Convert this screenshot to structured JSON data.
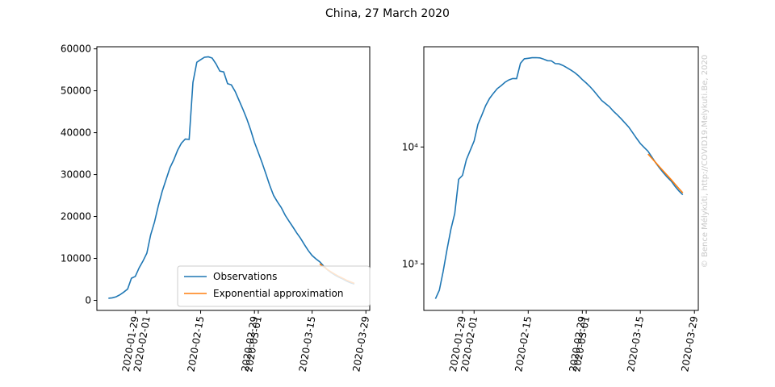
{
  "title": "China, 27 March 2020",
  "watermark": "© Bence Mélykúti, http://COVID19.Melykuti.Be, 2020",
  "chart_data": [
    {
      "type": "line",
      "log_y": false,
      "legend": "lower center",
      "x": [
        "2020-01-22",
        "2020-01-23",
        "2020-01-24",
        "2020-01-25",
        "2020-01-26",
        "2020-01-27",
        "2020-01-28",
        "2020-01-29",
        "2020-01-30",
        "2020-01-31",
        "2020-02-01",
        "2020-02-02",
        "2020-02-03",
        "2020-02-04",
        "2020-02-05",
        "2020-02-06",
        "2020-02-07",
        "2020-02-08",
        "2020-02-09",
        "2020-02-10",
        "2020-02-11",
        "2020-02-12",
        "2020-02-13",
        "2020-02-14",
        "2020-02-15",
        "2020-02-16",
        "2020-02-17",
        "2020-02-18",
        "2020-02-19",
        "2020-02-20",
        "2020-02-21",
        "2020-02-22",
        "2020-02-23",
        "2020-02-24",
        "2020-02-25",
        "2020-02-26",
        "2020-02-27",
        "2020-02-28",
        "2020-02-29",
        "2020-03-01",
        "2020-03-02",
        "2020-03-03",
        "2020-03-04",
        "2020-03-05",
        "2020-03-06",
        "2020-03-07",
        "2020-03-08",
        "2020-03-09",
        "2020-03-10",
        "2020-03-11",
        "2020-03-12",
        "2020-03-13",
        "2020-03-14",
        "2020-03-15",
        "2020-03-16",
        "2020-03-17",
        "2020-03-18",
        "2020-03-19",
        "2020-03-20",
        "2020-03-21",
        "2020-03-22",
        "2020-03-23",
        "2020-03-24",
        "2020-03-25",
        "2020-03-26"
      ],
      "series": [
        {
          "name": "Observations",
          "color": "#1f77b4",
          "values": [
            503,
            595,
            858,
            1325,
            1970,
            2700,
            5280,
            5720,
            7780,
            9370,
            11250,
            15600,
            18700,
            22600,
            26000,
            28800,
            31600,
            33500,
            35800,
            37500,
            38500,
            38400,
            52000,
            56800,
            57400,
            58000,
            58100,
            57800,
            56400,
            54700,
            54500,
            51700,
            51400,
            49800,
            47700,
            45600,
            43300,
            40700,
            37700,
            35300,
            32800,
            30100,
            27400,
            25000,
            23500,
            22100,
            20300,
            18900,
            17500,
            16100,
            14800,
            13300,
            11900,
            10700,
            9900,
            9200,
            8200,
            7300,
            6600,
            6000,
            5500,
            5100,
            4600,
            4200,
            3900
          ]
        },
        {
          "name": "Exponential approximation",
          "color": "#ff7f0e",
          "values": [
            null,
            null,
            null,
            null,
            null,
            null,
            null,
            null,
            null,
            null,
            null,
            null,
            null,
            null,
            null,
            null,
            null,
            null,
            null,
            null,
            null,
            null,
            null,
            null,
            null,
            null,
            null,
            null,
            null,
            null,
            null,
            null,
            null,
            null,
            null,
            null,
            null,
            null,
            null,
            null,
            null,
            null,
            null,
            null,
            null,
            null,
            null,
            null,
            null,
            null,
            null,
            null,
            null,
            null,
            null,
            8700,
            8000,
            7350,
            6750,
            6200,
            5700,
            5250,
            4800,
            4400,
            4050
          ]
        }
      ],
      "xlim": [
        "2020-01-19",
        "2020-03-30"
      ],
      "xticks": [
        "2020-01-29",
        "2020-02-01",
        "2020-02-15",
        "2020-02-29",
        "2020-03-01",
        "2020-03-15",
        "2020-03-29"
      ],
      "ylim": [
        -2400,
        60500
      ],
      "yticks": [
        0,
        10000,
        20000,
        30000,
        40000,
        50000,
        60000
      ]
    },
    {
      "type": "line",
      "log_y": true,
      "x": [
        "2020-01-22",
        "2020-01-23",
        "2020-01-24",
        "2020-01-25",
        "2020-01-26",
        "2020-01-27",
        "2020-01-28",
        "2020-01-29",
        "2020-01-30",
        "2020-01-31",
        "2020-02-01",
        "2020-02-02",
        "2020-02-03",
        "2020-02-04",
        "2020-02-05",
        "2020-02-06",
        "2020-02-07",
        "2020-02-08",
        "2020-02-09",
        "2020-02-10",
        "2020-02-11",
        "2020-02-12",
        "2020-02-13",
        "2020-02-14",
        "2020-02-15",
        "2020-02-16",
        "2020-02-17",
        "2020-02-18",
        "2020-02-19",
        "2020-02-20",
        "2020-02-21",
        "2020-02-22",
        "2020-02-23",
        "2020-02-24",
        "2020-02-25",
        "2020-02-26",
        "2020-02-27",
        "2020-02-28",
        "2020-02-29",
        "2020-03-01",
        "2020-03-02",
        "2020-03-03",
        "2020-03-04",
        "2020-03-05",
        "2020-03-06",
        "2020-03-07",
        "2020-03-08",
        "2020-03-09",
        "2020-03-10",
        "2020-03-11",
        "2020-03-12",
        "2020-03-13",
        "2020-03-14",
        "2020-03-15",
        "2020-03-16",
        "2020-03-17",
        "2020-03-18",
        "2020-03-19",
        "2020-03-20",
        "2020-03-21",
        "2020-03-22",
        "2020-03-23",
        "2020-03-24",
        "2020-03-25",
        "2020-03-26"
      ],
      "series": [
        {
          "name": "Observations",
          "color": "#1f77b4",
          "values": [
            503,
            595,
            858,
            1325,
            1970,
            2700,
            5280,
            5720,
            7780,
            9370,
            11250,
            15600,
            18700,
            22600,
            26000,
            28800,
            31600,
            33500,
            35800,
            37500,
            38500,
            38400,
            52000,
            56800,
            57400,
            58000,
            58100,
            57800,
            56400,
            54700,
            54500,
            51700,
            51400,
            49800,
            47700,
            45600,
            43300,
            40700,
            37700,
            35300,
            32800,
            30100,
            27400,
            25000,
            23500,
            22100,
            20300,
            18900,
            17500,
            16100,
            14800,
            13300,
            11900,
            10700,
            9900,
            9200,
            8200,
            7300,
            6600,
            6000,
            5500,
            5100,
            4600,
            4200,
            3900
          ]
        },
        {
          "name": "Exponential approximation",
          "color": "#ff7f0e",
          "values": [
            null,
            null,
            null,
            null,
            null,
            null,
            null,
            null,
            null,
            null,
            null,
            null,
            null,
            null,
            null,
            null,
            null,
            null,
            null,
            null,
            null,
            null,
            null,
            null,
            null,
            null,
            null,
            null,
            null,
            null,
            null,
            null,
            null,
            null,
            null,
            null,
            null,
            null,
            null,
            null,
            null,
            null,
            null,
            null,
            null,
            null,
            null,
            null,
            null,
            null,
            null,
            null,
            null,
            null,
            null,
            8700,
            8000,
            7350,
            6750,
            6200,
            5700,
            5250,
            4800,
            4400,
            4050
          ]
        }
      ],
      "xlim": [
        "2020-01-19",
        "2020-03-30"
      ],
      "xticks": [
        "2020-01-29",
        "2020-02-01",
        "2020-02-15",
        "2020-02-29",
        "2020-03-01",
        "2020-03-15",
        "2020-03-29"
      ],
      "ylim": [
        400,
        72000
      ],
      "yticks": [
        {
          "value": 1000,
          "label": "10³"
        },
        {
          "value": 10000,
          "label": "10⁴"
        }
      ]
    }
  ]
}
